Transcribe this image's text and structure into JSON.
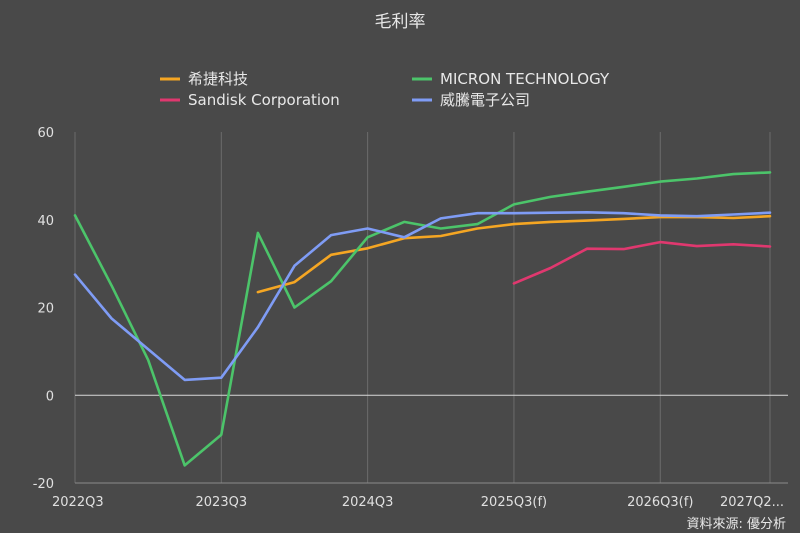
{
  "chart_data": {
    "type": "line",
    "title": "毛利率",
    "xlabel": "",
    "ylabel": "",
    "ylim": [
      -20,
      60
    ],
    "yticks": [
      -20,
      0,
      20,
      40,
      60
    ],
    "xticks": [
      "2022Q3",
      "2023Q3",
      "2024Q3",
      "2025Q3(f)",
      "2026Q3(f)",
      "2027Q2..."
    ],
    "categories": [
      "2022Q3",
      "2022Q4",
      "2023Q1",
      "2023Q2",
      "2023Q3",
      "2023Q4",
      "2024Q1",
      "2024Q2",
      "2024Q3",
      "2024Q4",
      "2025Q1",
      "2025Q2",
      "2025Q3(f)",
      "2025Q4(f)",
      "2026Q1(f)",
      "2026Q2(f)",
      "2026Q3(f)",
      "2026Q4(f)",
      "2027Q1(f)",
      "2027Q2(f)"
    ],
    "grid": "vertical-at-xticks, zero-line",
    "legend_position": "top",
    "series": [
      {
        "name": "希捷科技",
        "color": "#f5a623",
        "values": [
          null,
          null,
          null,
          null,
          null,
          23.5,
          25.8,
          32,
          33.5,
          35.8,
          36.3,
          38,
          39,
          39.5,
          39.8,
          40.2,
          40.6,
          40.6,
          40.4,
          40.8
        ]
      },
      {
        "name": "MICRON TECHNOLOGY",
        "color": "#4cc46a",
        "values": [
          41,
          25,
          8,
          -16,
          -9,
          37,
          20,
          26,
          36,
          39.5,
          38,
          39,
          43.5,
          45.2,
          46.4,
          47.5,
          48.7,
          49.4,
          50.4,
          50.8
        ]
      },
      {
        "name": "Sandisk Corporation",
        "color": "#e0386f",
        "values": [
          null,
          null,
          null,
          null,
          null,
          null,
          null,
          null,
          null,
          null,
          null,
          null,
          25.5,
          29,
          33.4,
          33.3,
          34.9,
          34,
          34.4,
          33.9
        ]
      },
      {
        "name": "威騰電子公司",
        "color": "#7f9cf5",
        "values": [
          27.5,
          17.5,
          10.5,
          3.5,
          4,
          15.5,
          29.5,
          36.5,
          38,
          36,
          40.3,
          41.5,
          41.5,
          41.6,
          41.7,
          41.5,
          41,
          40.8,
          41.2,
          41.6
        ]
      }
    ],
    "x_first_tick_index": 0,
    "source": "資料來源: 優分析"
  }
}
